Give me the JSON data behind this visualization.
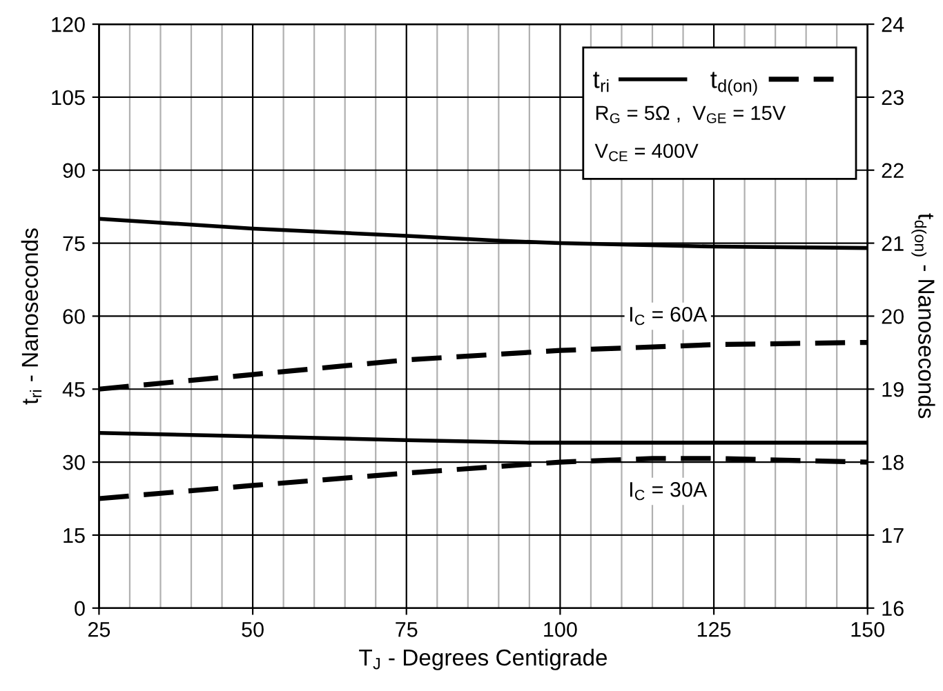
{
  "chart_data": {
    "type": "line",
    "xlabel": "T$_{J}$ - Degrees Centigrade",
    "ylabel": "t$_{ri}$ - Nanoseconds",
    "y2label": "t$_{d(on)}$ - Nanoseconds",
    "xlim": [
      25,
      150
    ],
    "xticks": [
      25,
      50,
      75,
      100,
      125,
      150
    ],
    "ylim": [
      0,
      120
    ],
    "yticks": [
      0,
      15,
      30,
      45,
      60,
      75,
      90,
      105,
      120
    ],
    "y2lim": [
      16,
      24
    ],
    "y2ticks": [
      16,
      17,
      18,
      19,
      20,
      21,
      22,
      23,
      24
    ],
    "grid": true,
    "legend": "top right",
    "marker": "none",
    "series": [
      {
        "name": "t$_{ri}$",
        "color": "#000000",
        "line_style": "solid",
        "x": [
          25,
          50,
          75,
          90,
          100,
          125,
          150
        ],
        "values": [
          80,
          78,
          76.5,
          75.5,
          75,
          74.3,
          74
        ]
      },
      {
        "name": "t$_{d(on)}$",
        "color": "#000000",
        "line_style": "dashed",
        "axis": "y2",
        "x": [
          25,
          50,
          75,
          100,
          125,
          150
        ],
        "values": [
          19.0,
          19.2,
          19.4,
          19.53,
          19.61,
          19.64
        ]
      },
      {
        "color": "#000000",
        "line_style": "solid",
        "x": [
          25,
          50,
          75,
          95,
          150
        ],
        "values": [
          36,
          35.3,
          34.5,
          34,
          34
        ]
      },
      {
        "color": "#000000",
        "line_style": "dashed",
        "axis": "y2",
        "x": [
          25,
          50,
          75,
          100,
          115,
          125,
          150
        ],
        "values": [
          17.5,
          17.68,
          17.85,
          18.0,
          18.05,
          18.05,
          18.0
        ]
      }
    ],
    "annotations": [
      "R$_{G}$ = 5Ω ,  V$_{GE}$ = 15V",
      "V$_{CE}$ = 400V",
      "I$_{C}$ = 60A",
      "I$_{C}$ = 30A"
    ]
  }
}
